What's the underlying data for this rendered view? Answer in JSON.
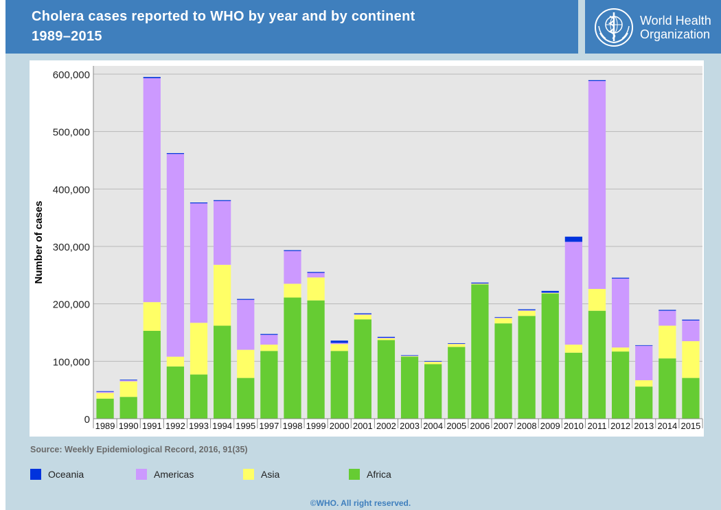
{
  "header": {
    "title_line1": "Cholera cases reported to WHO by year and by continent",
    "title_line2": "1989–2015",
    "logo_line1": "World Health",
    "logo_line2": "Organization"
  },
  "source": "Source: Weekly Epidemiological Record, 2016, 91(35)",
  "copyright": "©WHO. All right reserved.",
  "colors": {
    "Africa": "#66cc33",
    "Asia": "#ffff66",
    "Americas": "#cc99ff",
    "Oceania": "#0033dd"
  },
  "legend": [
    {
      "name": "Oceania",
      "color": "#0033dd"
    },
    {
      "name": "Americas",
      "color": "#cc99ff"
    },
    {
      "name": "Asia",
      "color": "#ffff66"
    },
    {
      "name": "Africa",
      "color": "#66cc33"
    }
  ],
  "chart_data": {
    "type": "bar",
    "stacked": true,
    "title": "Cholera cases reported to WHO by year and by continent 1989–2015",
    "xlabel": "",
    "ylabel": "Number of cases",
    "ylim": [
      0,
      600000
    ],
    "yticks": [
      0,
      100000,
      200000,
      300000,
      400000,
      500000,
      600000
    ],
    "ytick_labels": [
      "0",
      "100,000",
      "200,000",
      "300,000",
      "400,000",
      "500,000",
      "600,000"
    ],
    "grid": true,
    "legend_position": "bottom",
    "categories": [
      "1989",
      "1990",
      "1991",
      "1992",
      "1993",
      "1994",
      "1995",
      "1997",
      "1998",
      "1999",
      "2000",
      "2001",
      "2002",
      "2003",
      "2004",
      "2005",
      "2006",
      "2007",
      "2008",
      "2009",
      "2010",
      "2011",
      "2012",
      "2013",
      "2014",
      "2015"
    ],
    "series": [
      {
        "name": "Africa",
        "values": [
          35000,
          38000,
          153000,
          91000,
          77000,
          162000,
          71000,
          118000,
          211000,
          206000,
          118000,
          173000,
          137000,
          108000,
          95000,
          125000,
          234000,
          166000,
          179000,
          218000,
          115000,
          188000,
          117000,
          56000,
          105000,
          71000
        ]
      },
      {
        "name": "Asia",
        "values": [
          10000,
          27000,
          50000,
          17000,
          90000,
          106000,
          49000,
          11000,
          24000,
          40000,
          12000,
          8000,
          3000,
          1000,
          4000,
          5000,
          1000,
          9000,
          9000,
          1000,
          14000,
          38000,
          7000,
          11000,
          57000,
          64000
        ]
      },
      {
        "name": "Americas",
        "values": [
          2000,
          2000,
          390000,
          353000,
          208000,
          111000,
          87000,
          17000,
          57000,
          8000,
          2000,
          1000,
          1000,
          500,
          500,
          500,
          500,
          1000,
          1000,
          500,
          179000,
          362000,
          120000,
          60000,
          26000,
          36000
        ]
      },
      {
        "name": "Oceania",
        "values": [
          1000,
          1000,
          2000,
          1500,
          1500,
          1500,
          1500,
          1500,
          1500,
          1500,
          4000,
          1500,
          1500,
          1000,
          1000,
          1000,
          1500,
          1000,
          1500,
          3000,
          9000,
          1500,
          1500,
          1000,
          1500,
          1500
        ]
      }
    ]
  }
}
